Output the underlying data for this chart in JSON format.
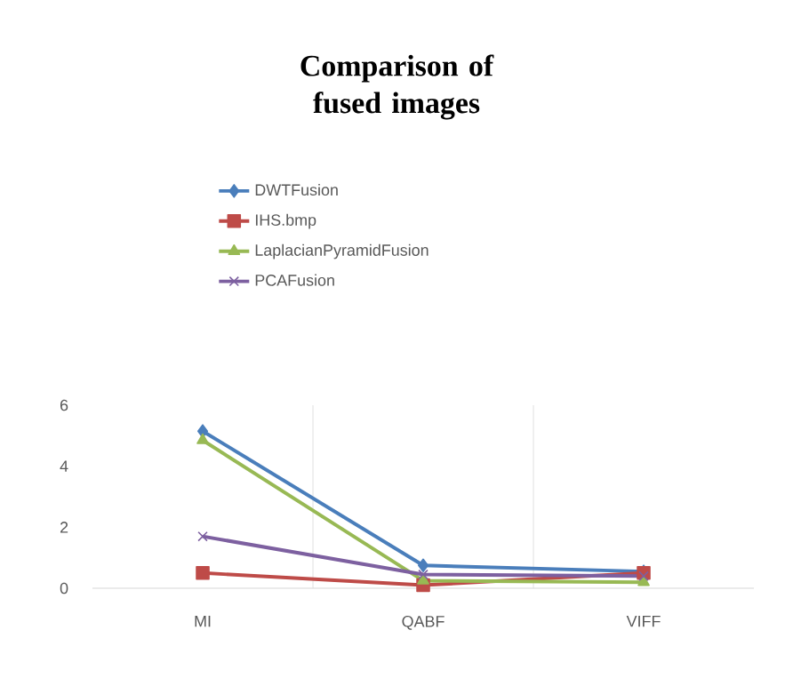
{
  "chart_data": {
    "type": "line",
    "title": "Comparison of fused images",
    "categories": [
      "MI",
      "QABF",
      "VIFF"
    ],
    "series": [
      {
        "name": "DWTFusion",
        "color": "#4a7ebb",
        "marker": "diamond",
        "values": [
          5.15,
          0.75,
          0.55
        ]
      },
      {
        "name": "IHS.bmp",
        "color": "#be4b48",
        "marker": "square",
        "values": [
          0.5,
          0.1,
          0.5
        ]
      },
      {
        "name": "LaplacianPyramidFusion",
        "color": "#98b954",
        "marker": "triangle",
        "values": [
          4.85,
          0.25,
          0.2
        ]
      },
      {
        "name": "PCAFusion",
        "color": "#7d60a0",
        "marker": "cross",
        "values": [
          1.7,
          0.45,
          0.4
        ]
      }
    ],
    "ylim": [
      0,
      6
    ],
    "yticks": [
      0,
      2,
      4,
      6
    ],
    "grid": "x",
    "legend": "top"
  }
}
